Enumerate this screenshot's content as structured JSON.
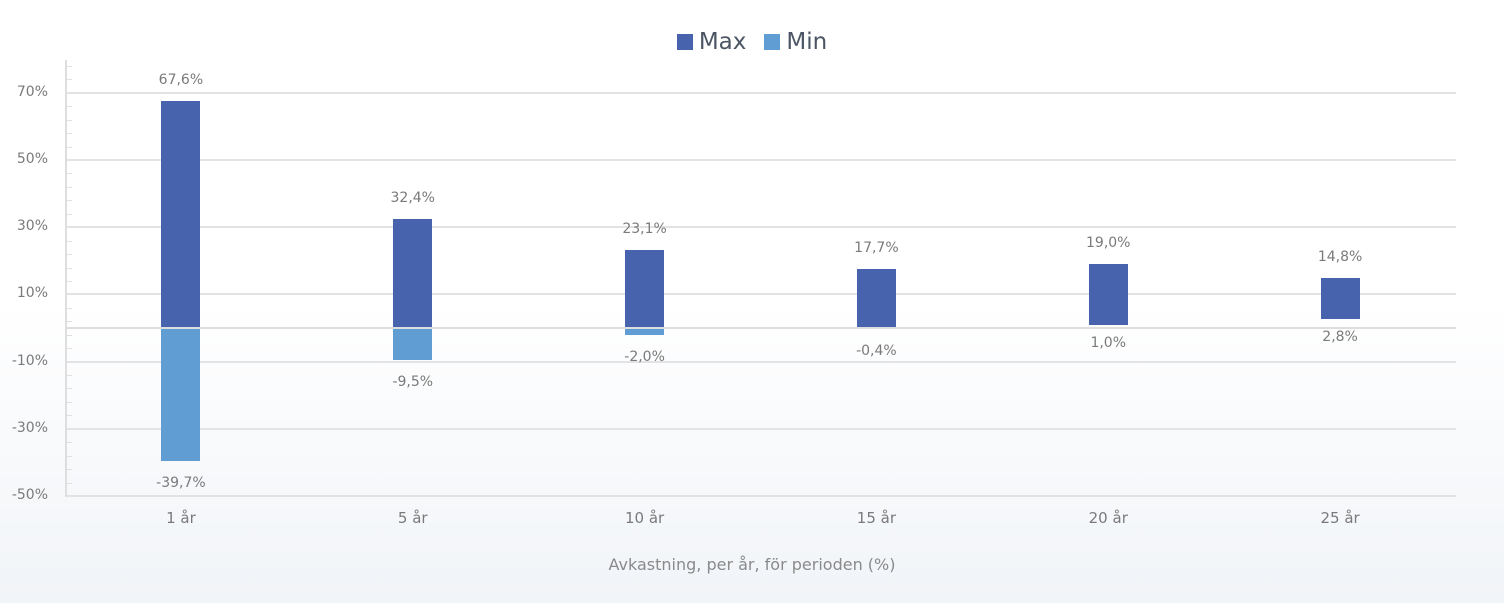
{
  "chart_data": {
    "type": "bar",
    "subtype": "floating-range",
    "title": "",
    "xlabel": "Avkastning, per år, för perioden (%)",
    "ylabel": "",
    "categories": [
      "1 år",
      "5 år",
      "10 år",
      "15 år",
      "20 år",
      "25 år"
    ],
    "series": [
      {
        "name": "Max",
        "color": "#4863ad",
        "values": [
          67.6,
          32.4,
          23.1,
          17.7,
          19.0,
          14.8
        ],
        "labels": [
          "67,6%",
          "32,4%",
          "23,1%",
          "17,7%",
          "19,0%",
          "14,8%"
        ]
      },
      {
        "name": "Min",
        "color": "#5f9dd3",
        "values": [
          -39.7,
          -9.5,
          -2.0,
          -0.4,
          1.0,
          2.8
        ],
        "labels": [
          "-39,7%",
          "-9,5%",
          "-2,0%",
          "-0,4%",
          "1,0%",
          "2,8%"
        ]
      }
    ],
    "ylim": [
      -50,
      80
    ],
    "yticks": [
      70,
      50,
      30,
      10,
      -10,
      -30,
      -50
    ],
    "ytick_labels": [
      "70%",
      "50%",
      "30%",
      "10%",
      "-10%",
      "-30%",
      "-50%"
    ],
    "grid": true,
    "legend_position": "top"
  },
  "legend": [
    {
      "label": "Max",
      "color": "#4863ad"
    },
    {
      "label": "Min",
      "color": "#5f9dd3"
    }
  ]
}
